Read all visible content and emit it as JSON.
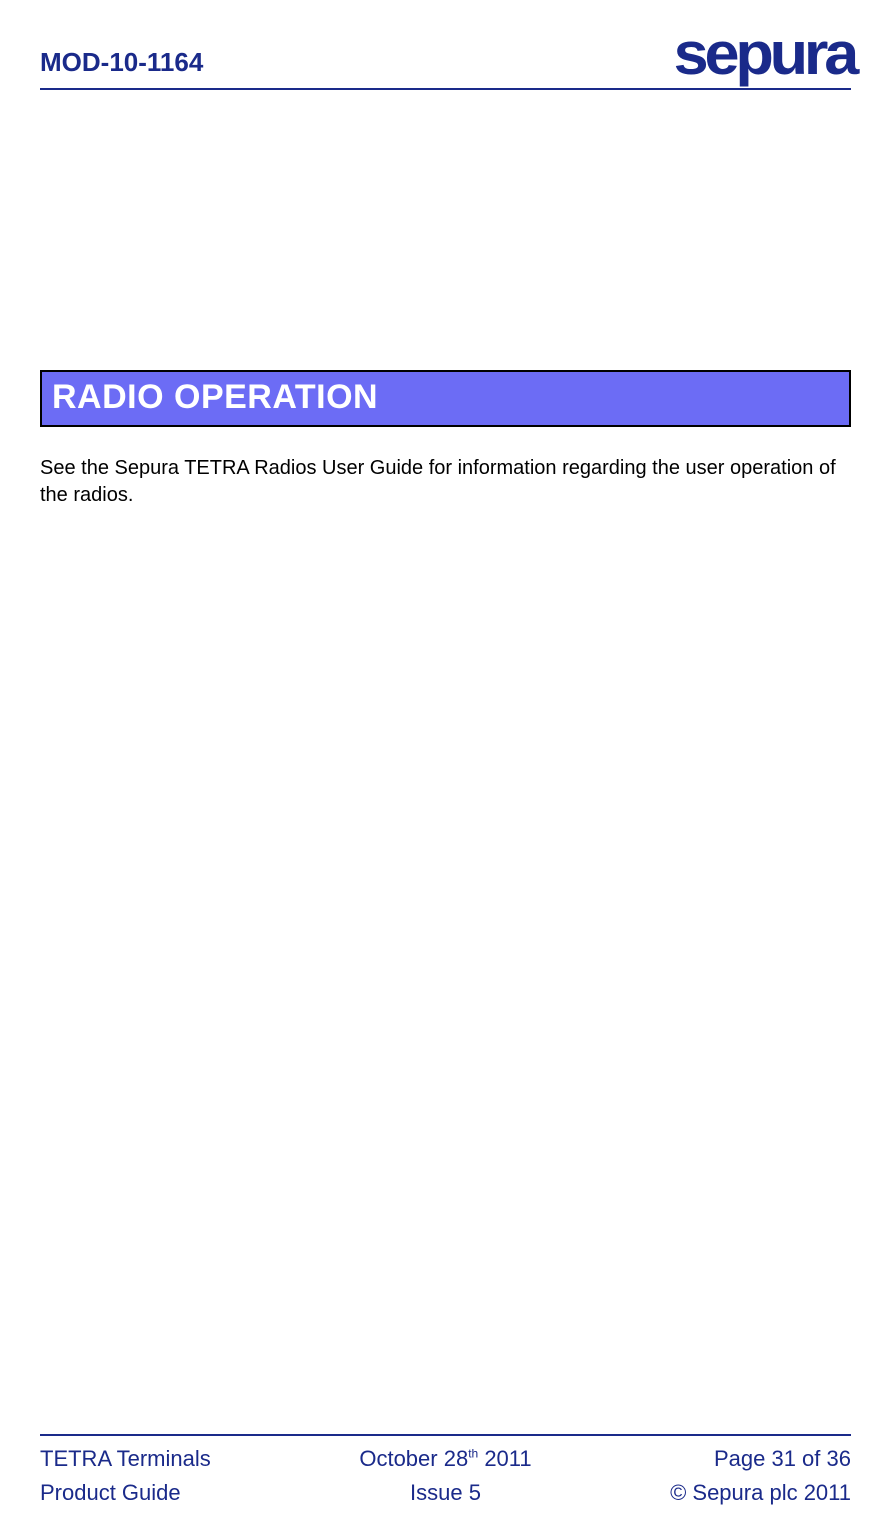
{
  "header": {
    "doc_id": "MOD-10-1164",
    "logo_text": "sepura"
  },
  "colors": {
    "brand": "#1a2a8a",
    "heading_bg": "#6c6cf5",
    "heading_border": "#000000",
    "heading_text": "#ffffff",
    "body_text": "#000000",
    "page_bg": "#ffffff"
  },
  "section": {
    "title": "RADIO OPERATION",
    "body": "See the Sepura TETRA Radios User Guide for information regarding the user operation of the radios."
  },
  "footer": {
    "left_line1": "TETRA Terminals",
    "left_line2": "Product Guide",
    "center_line1_prefix": "October 28",
    "center_line1_sup": "th",
    "center_line1_suffix": " 2011",
    "center_line2": "Issue 5",
    "right_line1": "Page 31 of 36",
    "right_line2": "© Sepura plc 2011"
  }
}
